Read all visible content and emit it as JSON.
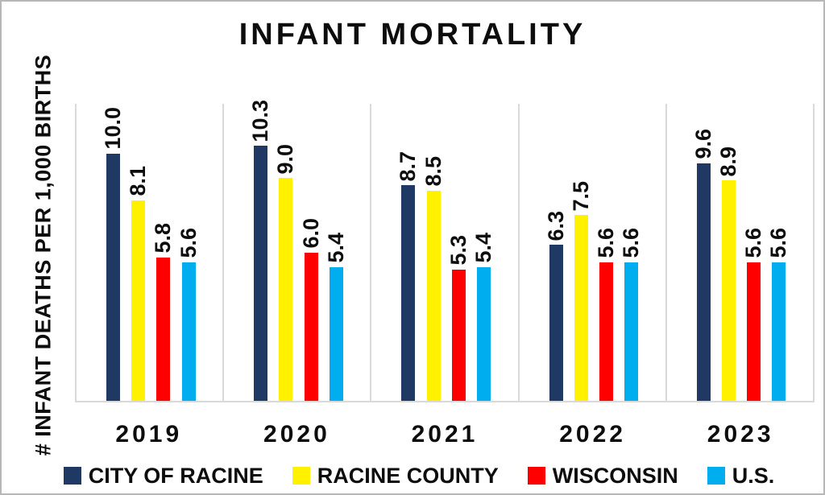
{
  "chart_data": {
    "type": "bar",
    "title": "INFANT MORTALITY",
    "xlabel": "",
    "ylabel": "# INFANT DEATHS PER 1,000 BIRTHS",
    "categories": [
      "2019",
      "2020",
      "2021",
      "2022",
      "2023"
    ],
    "series": [
      {
        "name": "CITY OF RACINE",
        "color": "#1F3864",
        "values": [
          10.0,
          10.3,
          8.7,
          6.3,
          9.6
        ]
      },
      {
        "name": "RACINE COUNTY",
        "color": "#FFF100",
        "values": [
          8.1,
          9.0,
          8.5,
          7.5,
          8.9
        ]
      },
      {
        "name": "WISCONSIN",
        "color": "#FF0000",
        "values": [
          5.8,
          6.0,
          5.3,
          5.6,
          5.6
        ]
      },
      {
        "name": "U.S.",
        "color": "#00AEEF",
        "values": [
          5.6,
          5.4,
          5.4,
          5.6,
          5.6
        ]
      }
    ],
    "ylim": [
      0,
      12
    ],
    "y_axis_tick_labels": "hidden",
    "gridlines": "vertical category separators only",
    "gridline_color": "#D9D9D9",
    "legend_position": "bottom",
    "value_labels": {
      "shown": true,
      "rotation_deg": 90,
      "decimals": 1
    },
    "text_color": "#0D0D0D",
    "background_color": "#FFFFFF",
    "frame_border_color": "#B7B7B7"
  }
}
